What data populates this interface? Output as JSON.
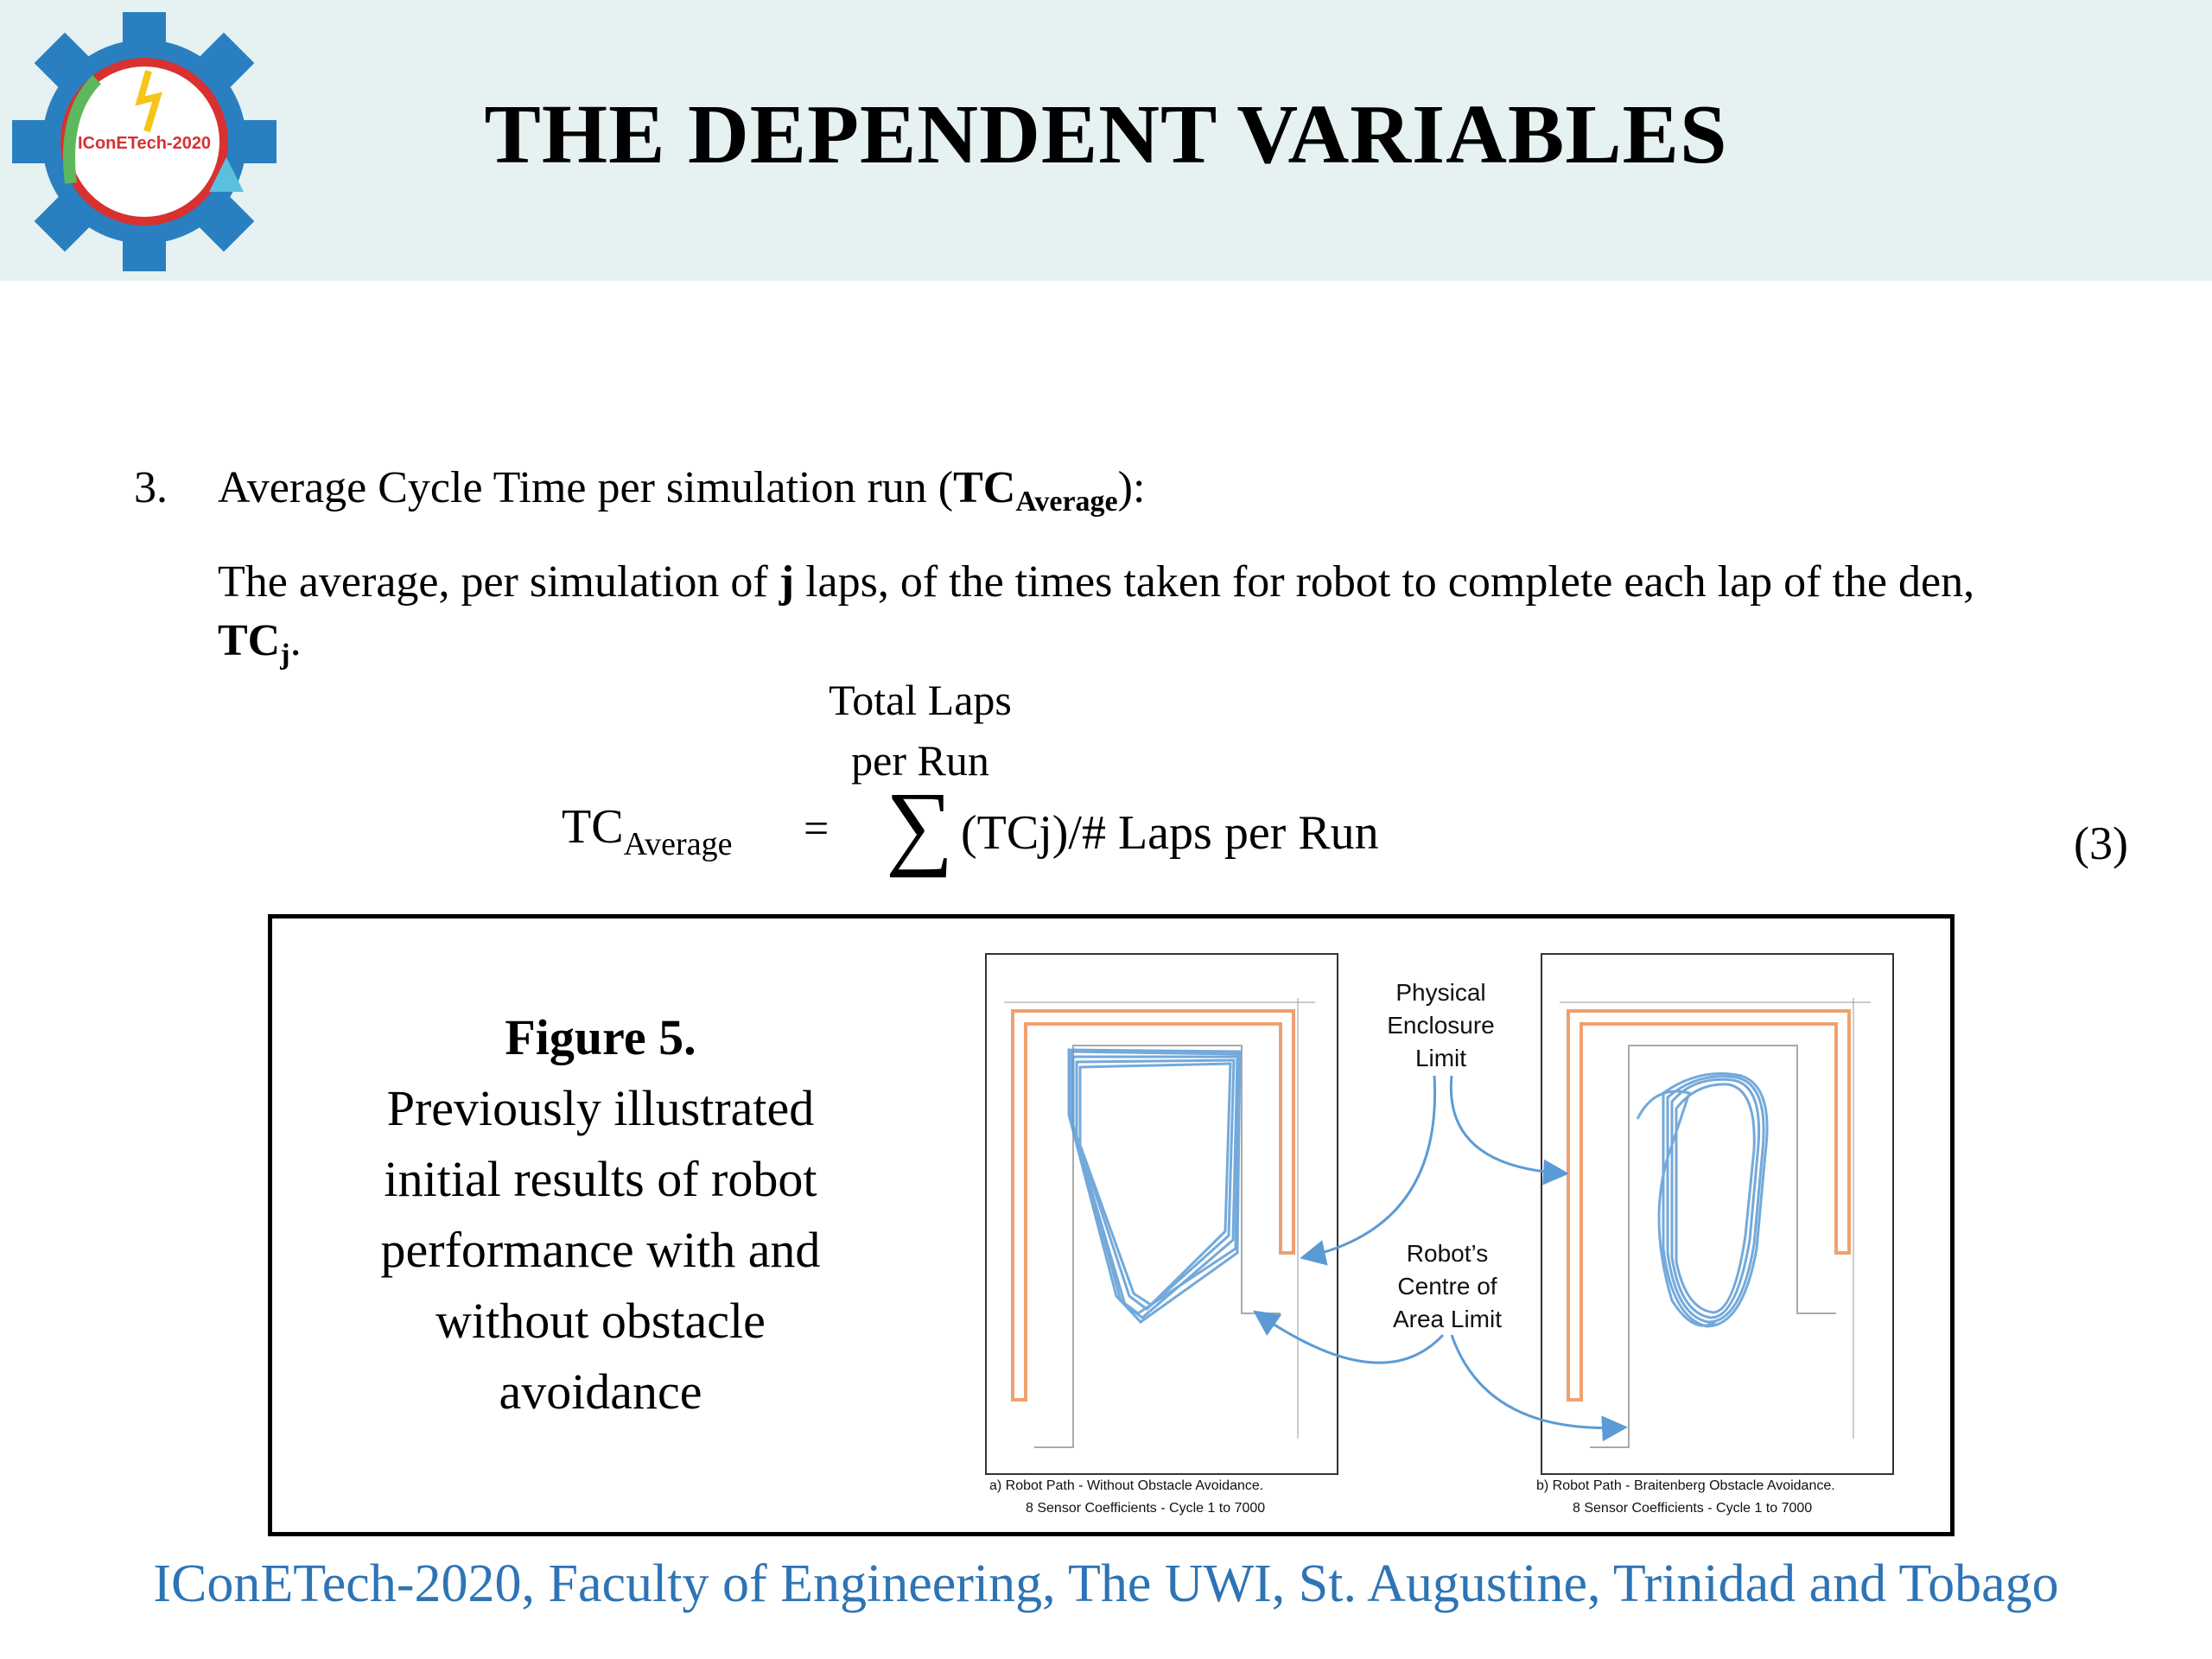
{
  "header": {
    "title": "THE DEPENDENT VARIABLES",
    "logo_text": "IConETech-2020",
    "bg_color": "#e6f1f1"
  },
  "item": {
    "number": "3.",
    "text_main": "Average Cycle Time per simulation run (",
    "text_bold": "TC",
    "text_sub": "Average",
    "text_end": "):"
  },
  "description": {
    "part1": "The average, per simulation of ",
    "bold_j": "j",
    "part2": " laps, of the times taken for robot to complete each lap of the den,",
    "bold_tc": "TC",
    "bold_sub": "j",
    "period": "."
  },
  "formula": {
    "sum_upper_line1": "Total Laps",
    "sum_upper_line2": "per Run",
    "lhs": "TC",
    "lhs_sub": "Average",
    "equals": "=",
    "sigma": "∑",
    "rhs": "(TCj)/# Laps per Run",
    "eq_number": "(3)"
  },
  "figure": {
    "heading": "Figure 5.",
    "caption_lines": [
      "Previously illustrated",
      "initial results of robot",
      "performance with and",
      "without obstacle",
      "avoidance"
    ],
    "annotation_physical": [
      "Physical",
      "Enclosure",
      "Limit"
    ],
    "annotation_robot": [
      "Robot’s",
      "Centre of",
      "Area Limit"
    ],
    "plot_a_caption_line1": "a)     Robot Path - Without Obstacle Avoidance.",
    "plot_a_caption_line2": "8 Sensor Coefficients - Cycle 1 to 7000",
    "plot_b_caption_line1": "b)     Robot Path - Braitenberg Obstacle Avoidance.",
    "plot_b_caption_line2": "8 Sensor Coefficients - Cycle 1 to 7000",
    "enclosure_color": "#f0a070",
    "path_color": "#5b9bd5",
    "arrow_color": "#5b9bd5"
  },
  "footer": {
    "text": "IConETech-2020, Faculty of Engineering, The UWI, St. Augustine, Trinidad and Tobago",
    "color": "#2e74b5"
  }
}
